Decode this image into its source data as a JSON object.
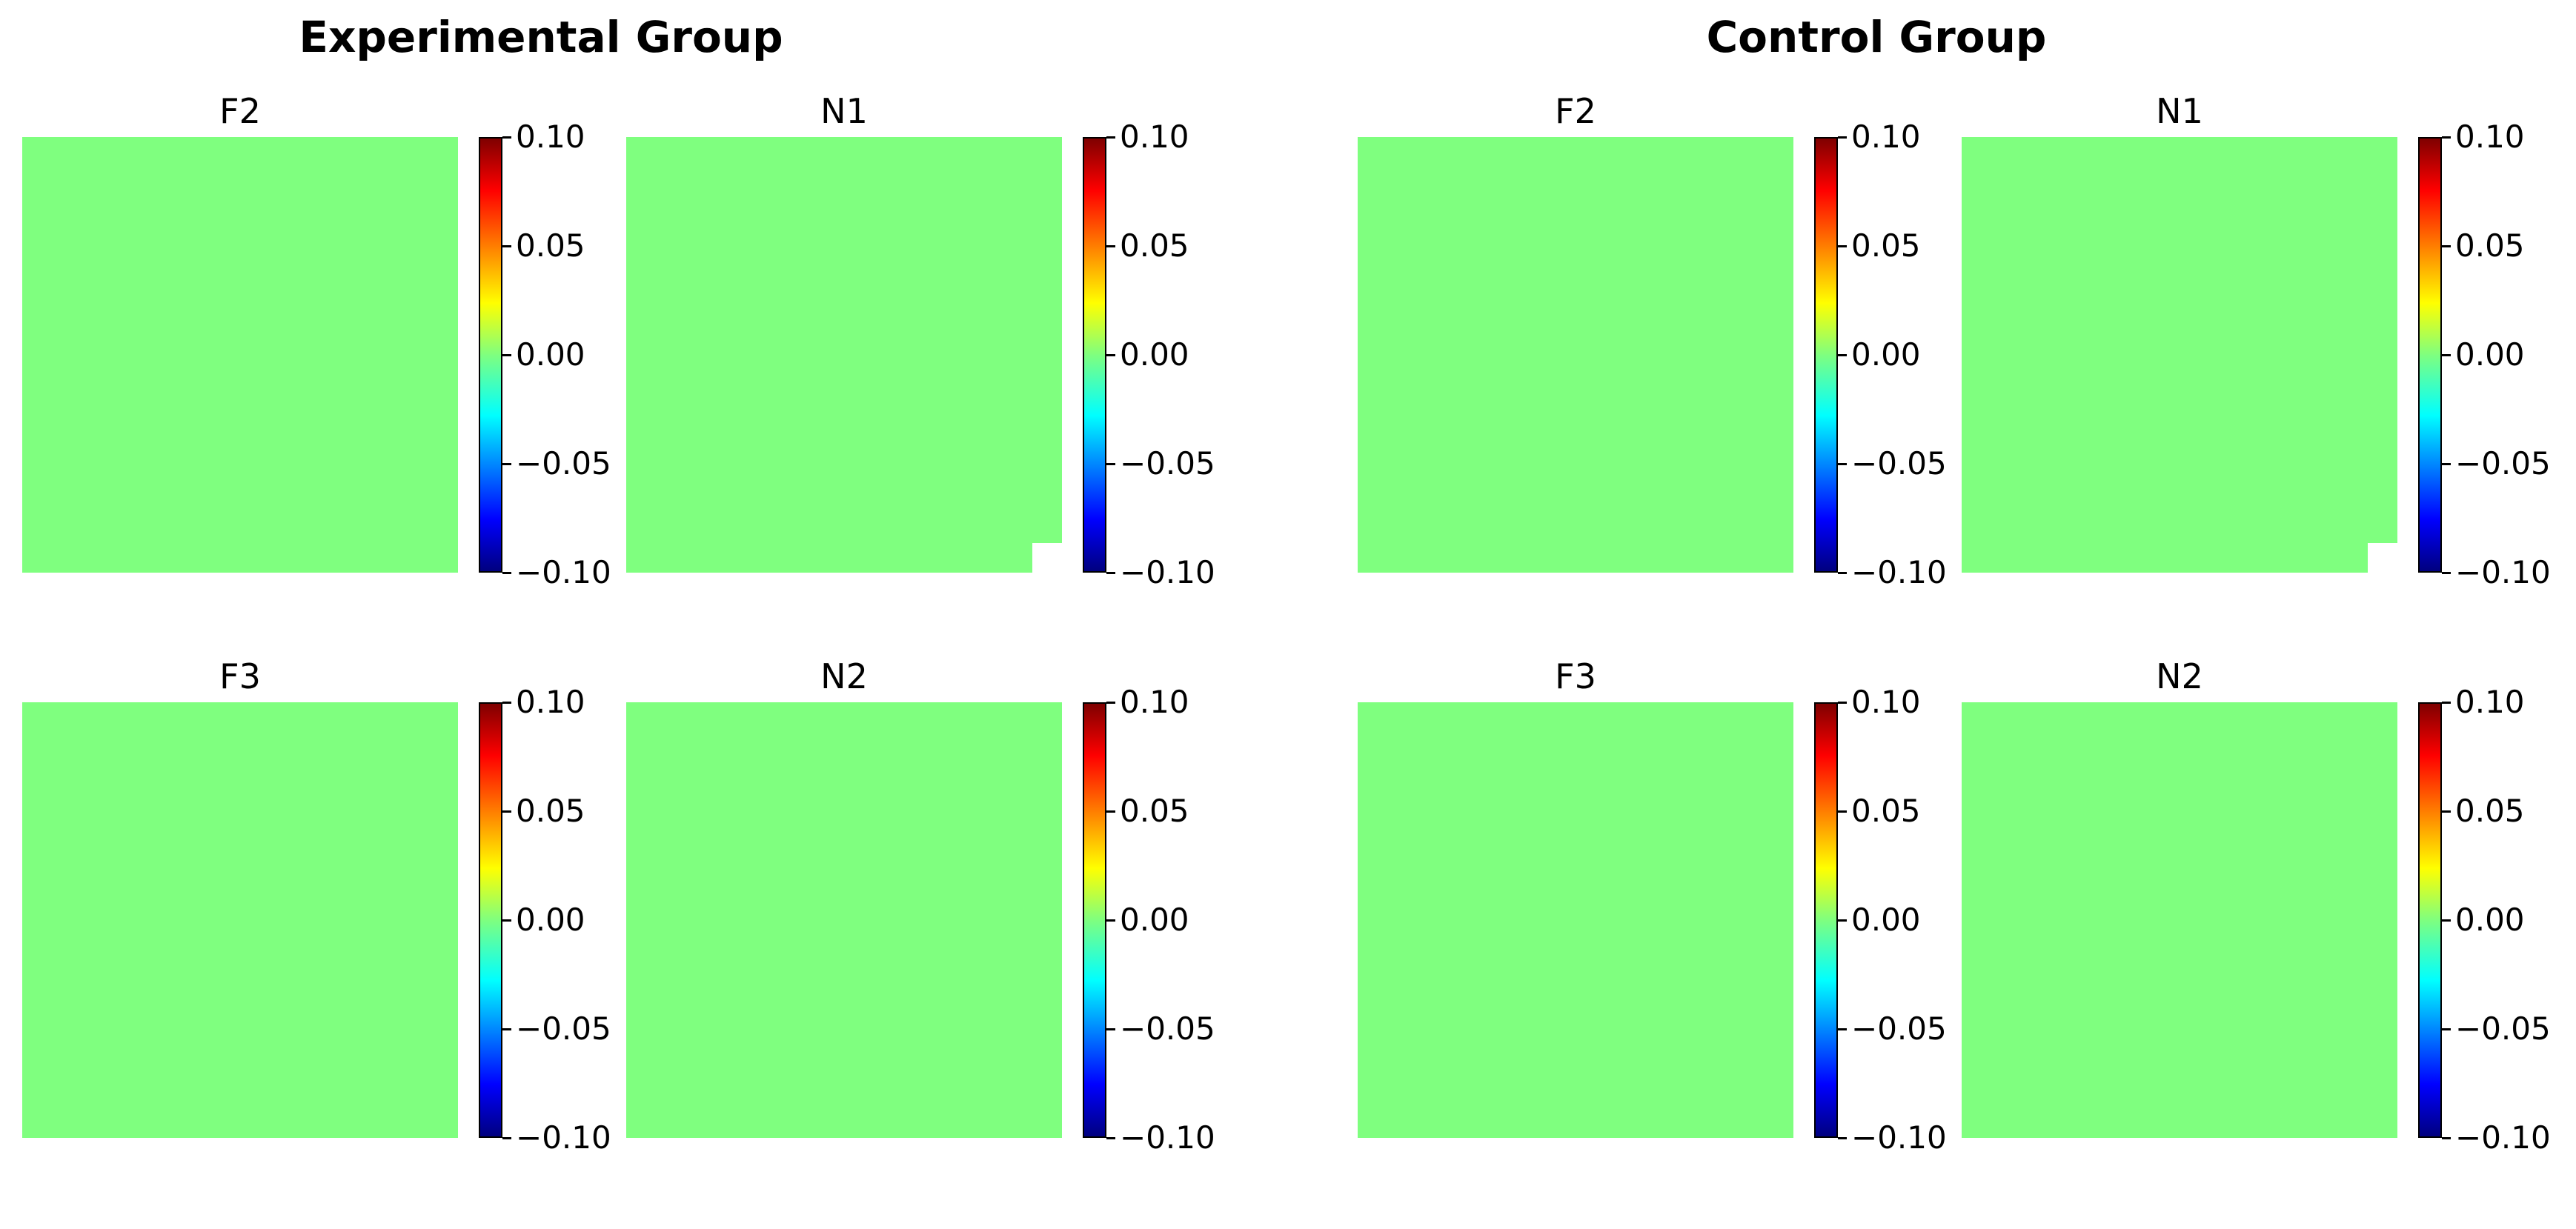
{
  "chart_data": [
    {
      "type": "heatmap",
      "group": "Experimental Group",
      "title": "F2",
      "colorbar": {
        "colormap": "jet",
        "range": [
          -0.1,
          0.1
        ],
        "ticks": [
          "0.10",
          "0.05",
          "0.00",
          "−0.05",
          "−0.10"
        ]
      },
      "values_uniform": 0.0,
      "missing_corner": false
    },
    {
      "type": "heatmap",
      "group": "Experimental Group",
      "title": "N1",
      "colorbar": {
        "colormap": "jet",
        "range": [
          -0.1,
          0.1
        ],
        "ticks": [
          "0.10",
          "0.05",
          "0.00",
          "−0.05",
          "−0.10"
        ]
      },
      "values_uniform": 0.0,
      "missing_corner": true
    },
    {
      "type": "heatmap",
      "group": "Experimental Group",
      "title": "F3",
      "colorbar": {
        "colormap": "jet",
        "range": [
          -0.1,
          0.1
        ],
        "ticks": [
          "0.10",
          "0.05",
          "0.00",
          "−0.05",
          "−0.10"
        ]
      },
      "values_uniform": 0.0,
      "missing_corner": false
    },
    {
      "type": "heatmap",
      "group": "Experimental Group",
      "title": "N2",
      "colorbar": {
        "colormap": "jet",
        "range": [
          -0.1,
          0.1
        ],
        "ticks": [
          "0.10",
          "0.05",
          "0.00",
          "−0.05",
          "−0.10"
        ]
      },
      "values_uniform": 0.0,
      "missing_corner": false
    },
    {
      "type": "heatmap",
      "group": "Control Group",
      "title": "F2",
      "colorbar": {
        "colormap": "jet",
        "range": [
          -0.1,
          0.1
        ],
        "ticks": [
          "0.10",
          "0.05",
          "0.00",
          "−0.05",
          "−0.10"
        ]
      },
      "values_uniform": 0.0,
      "missing_corner": false
    },
    {
      "type": "heatmap",
      "group": "Control Group",
      "title": "N1",
      "colorbar": {
        "colormap": "jet",
        "range": [
          -0.1,
          0.1
        ],
        "ticks": [
          "0.10",
          "0.05",
          "0.00",
          "−0.05",
          "−0.10"
        ]
      },
      "values_uniform": 0.0,
      "missing_corner": true
    },
    {
      "type": "heatmap",
      "group": "Control Group",
      "title": "F3",
      "colorbar": {
        "colormap": "jet",
        "range": [
          -0.1,
          0.1
        ],
        "ticks": [
          "0.10",
          "0.05",
          "0.00",
          "−0.05",
          "−0.10"
        ]
      },
      "values_uniform": 0.0,
      "missing_corner": false
    },
    {
      "type": "heatmap",
      "group": "Control Group",
      "title": "N2",
      "colorbar": {
        "colormap": "jet",
        "range": [
          -0.1,
          0.1
        ],
        "ticks": [
          "0.10",
          "0.05",
          "0.00",
          "−0.05",
          "−0.10"
        ]
      },
      "values_uniform": 0.0,
      "missing_corner": false
    }
  ],
  "groups": [
    "Experimental Group",
    "Control Group"
  ],
  "colors": {
    "map_fill": "#7fff7f",
    "background": "#ffffff"
  }
}
